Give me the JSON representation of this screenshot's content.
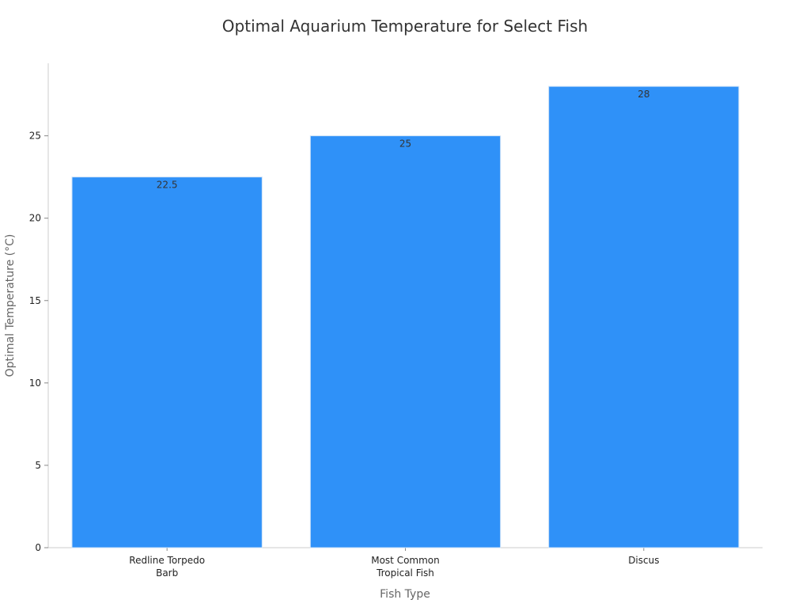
{
  "chart_data": {
    "type": "bar",
    "title": "Optimal Aquarium Temperature for Select Fish",
    "xlabel": "Fish Type",
    "ylabel": "Optimal Temperature (°C)",
    "categories": [
      [
        "Redline Torpedo",
        "Barb"
      ],
      [
        "Most Common",
        "Tropical Fish"
      ],
      [
        "Discus"
      ]
    ],
    "values": [
      22.5,
      25,
      28
    ],
    "data_labels": [
      "22.5",
      "25",
      "28"
    ],
    "yticks": [
      0,
      5,
      10,
      15,
      20,
      25
    ],
    "ylim": [
      0,
      29.4
    ],
    "grid": false,
    "legend": "none",
    "colors": {
      "bar": "#2f91f8",
      "bar_edge": "#cfe3f7",
      "axis": "#cccccc"
    }
  }
}
